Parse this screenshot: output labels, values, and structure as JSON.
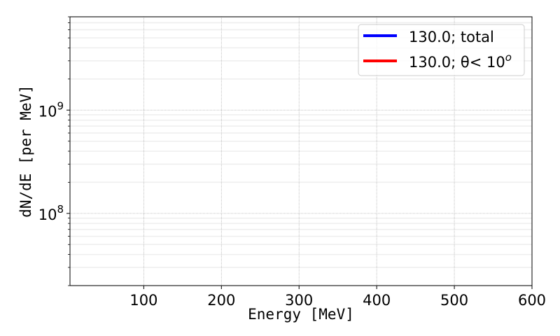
{
  "chart_data": {
    "type": "line",
    "title": "",
    "xlabel": "Energy [MeV]",
    "ylabel": "dN/dE [per MeV]",
    "xlim": [
      5,
      600
    ],
    "ylim": [
      20000000.0,
      8000000000.0
    ],
    "yscale": "log",
    "grid": true,
    "x_ticks": [
      100,
      200,
      300,
      400,
      500,
      600
    ],
    "x_tick_labels": [
      "100",
      "200",
      "300",
      "400",
      "500",
      "600"
    ],
    "y_ticks": [
      100000000.0,
      1000000000.0
    ],
    "y_tick_labels": [
      {
        "base": "10",
        "exp": "8"
      },
      {
        "base": "10",
        "exp": "9"
      }
    ],
    "legend_position": "top-right",
    "series": [
      {
        "name": "130.0; total",
        "color": "#0000ff",
        "x": [],
        "y": []
      },
      {
        "name": "130.0; θ< 10",
        "name_superscript": "o",
        "color": "#ff0000",
        "x": [],
        "y": []
      }
    ]
  }
}
